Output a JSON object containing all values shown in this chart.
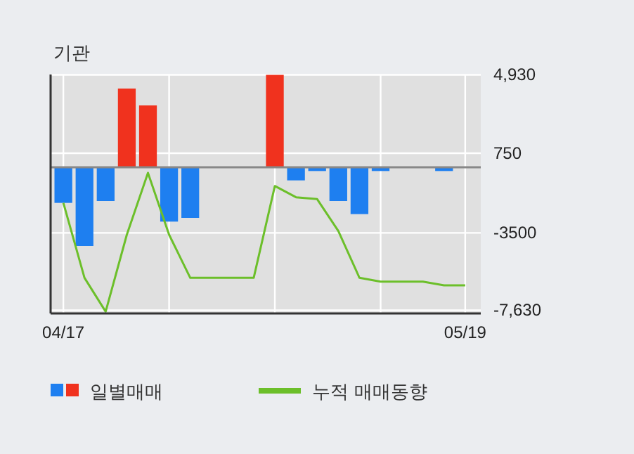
{
  "chart_data": {
    "type": "bar",
    "title": "기관",
    "categories": [
      "04/17",
      null,
      null,
      null,
      null,
      null,
      null,
      null,
      null,
      null,
      null,
      null,
      null,
      null,
      null,
      null,
      null,
      null,
      null,
      "05/19"
    ],
    "series": [
      {
        "name": "일별매매",
        "colors": [
          "#1e7ff0",
          "#1e7ff0",
          "#1e7ff0",
          "#f0321e",
          "#f0321e",
          "#1e7ff0",
          "#1e7ff0",
          null,
          null,
          null,
          "#f0321e",
          "#1e7ff0",
          "#1e7ff0",
          "#1e7ff0",
          "#1e7ff0",
          "#1e7ff0",
          null,
          null,
          "#1e7ff0",
          null
        ],
        "values": [
          -1900,
          -4200,
          -1800,
          4200,
          3300,
          -2900,
          -2700,
          null,
          null,
          null,
          4930,
          -700,
          -200,
          -1800,
          -2500,
          -200,
          null,
          null,
          -200,
          null
        ]
      },
      {
        "name": "누적 매매동향",
        "type": "line",
        "color": "#6cbf2a",
        "values": [
          -1900,
          -5900,
          -7700,
          -3600,
          -300,
          -3600,
          -5900,
          -5900,
          -5900,
          -5900,
          -1000,
          -1600,
          -1700,
          -3400,
          -5900,
          -6100,
          -6100,
          -6100,
          -6300,
          -6300
        ]
      }
    ],
    "ylim": [
      -7800,
      4950
    ],
    "yticks": [
      {
        "value": 4930,
        "label": "4,930"
      },
      750,
      -3500,
      {
        "value": -7630,
        "label": "-7,630"
      }
    ],
    "grid": true,
    "legend": "bottom"
  }
}
